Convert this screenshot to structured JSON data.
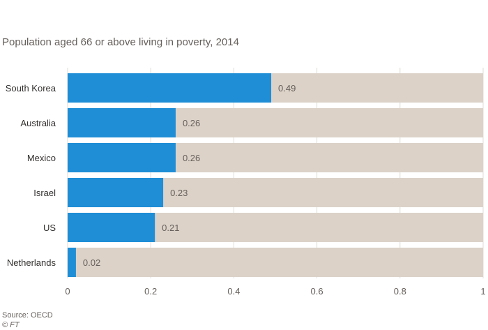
{
  "chart_data": {
    "type": "bar",
    "orientation": "horizontal",
    "title": "Population aged 66 or above living in poverty, 2014",
    "categories": [
      "South Korea",
      "Australia",
      "Mexico",
      "Israel",
      "US",
      "Netherlands"
    ],
    "values": [
      0.49,
      0.26,
      0.26,
      0.23,
      0.21,
      0.02
    ],
    "value_labels": [
      "0.49",
      "0.26",
      "0.26",
      "0.23",
      "0.21",
      "0.02"
    ],
    "xlim": [
      0,
      1
    ],
    "xticks": [
      0,
      0.2,
      0.4,
      0.6,
      0.8,
      1
    ],
    "xtick_labels": [
      "0",
      "0.2",
      "0.4",
      "0.6",
      "0.8",
      "1"
    ],
    "bar_color": "#1f8ed6",
    "track_color": "#dcd2c8",
    "grid": true
  },
  "footer": {
    "source": "Source: OECD",
    "credit": "© FT"
  }
}
